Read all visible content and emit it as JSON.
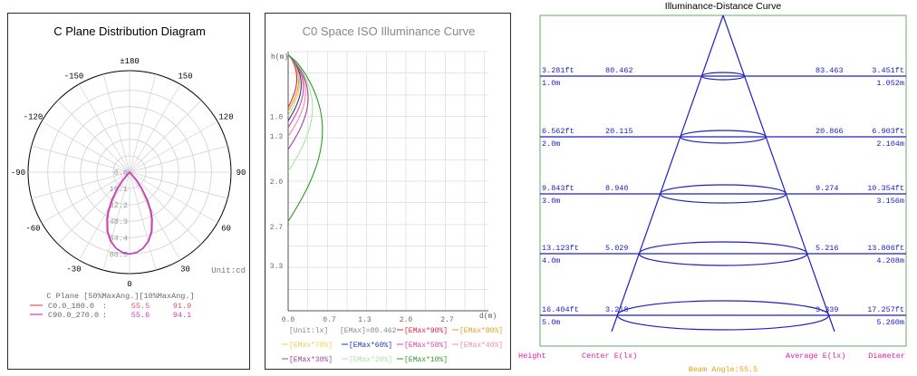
{
  "colors": {
    "blue": "#2020c0",
    "magenta": "#e020a0",
    "green_border": "#66aa66",
    "orange": "#e0a020"
  },
  "chart_data": [
    {
      "type": "polar",
      "title": "C Plane Distribution Diagram",
      "angle_labels": [
        "±180",
        "150",
        "120",
        "90",
        "60",
        "30",
        "0",
        "-30",
        "-60",
        "-90",
        "-120",
        "-150"
      ],
      "radial_ticks": [
        "0.0",
        "16.1",
        "32.2",
        "48.3",
        "64.4",
        "80.5"
      ],
      "r_max": 80.5,
      "unit": "Unit:cd",
      "table_header": "C Plane   [50%MaxAng.][10%MaxAng.]",
      "series": [
        {
          "name": "C0.0_180.0",
          "color": "#e0506a",
          "beam50": "55.5",
          "beam10": "91.9"
        },
        {
          "name": "C90.0_270.0",
          "color": "#c040d0",
          "beam50": "55.6",
          "beam10": "94.1"
        }
      ],
      "curve": {
        "angles_deg": [
          0,
          5,
          10,
          15,
          20,
          25,
          28,
          32,
          36,
          40,
          45
        ],
        "values": [
          80.5,
          79.4,
          76.0,
          70.5,
          62.5,
          51.5,
          44.0,
          32.0,
          20.0,
          10.0,
          0
        ]
      }
    },
    {
      "type": "line",
      "title": "C0 Space ISO Illuminance Curve",
      "ylabel": "h(m)",
      "xlabel": "d(m)",
      "x_ticks": [
        "0.0",
        "0.7",
        "1.3",
        "2.0",
        "2.7"
      ],
      "y_ticks": [
        "1.0",
        "1.3",
        "2.0",
        "2.7",
        "3.3"
      ],
      "xlim": [
        0,
        3.4
      ],
      "ylim": [
        0,
        4.0
      ],
      "legend": [
        {
          "label": "[Unit:lx]",
          "color": "#888888"
        },
        {
          "label": "[EMax]=80.462",
          "color": "#888888"
        },
        {
          "label": "[EMax*90%]",
          "color": "#e02040"
        },
        {
          "label": "[EMax*80%]",
          "color": "#e0a020"
        },
        {
          "label": "[EMax*70%]",
          "color": "#e6d24a"
        },
        {
          "label": "[EMax*60%]",
          "color": "#2030c0"
        },
        {
          "label": "[EMax*50%]",
          "color": "#e040a0"
        },
        {
          "label": "[EMax*40%]",
          "color": "#e890a8"
        },
        {
          "label": "[EMax*30%]",
          "color": "#a040a0"
        },
        {
          "label": "[EMax*20%]",
          "color": "#a8e8a0"
        },
        {
          "label": "[EMax*10%]",
          "color": "#2a9a2a"
        }
      ],
      "curves": [
        {
          "color": "#e02040",
          "tip_h": 0.86,
          "max_d": 0.2
        },
        {
          "color": "#e0a020",
          "tip_h": 0.92,
          "max_d": 0.24
        },
        {
          "color": "#e6d24a",
          "tip_h": 0.99,
          "max_d": 0.26
        },
        {
          "color": "#2030c0",
          "tip_h": 1.07,
          "max_d": 0.3
        },
        {
          "color": "#e040a0",
          "tip_h": 1.17,
          "max_d": 0.35
        },
        {
          "color": "#e890a8",
          "tip_h": 1.31,
          "max_d": 0.4
        },
        {
          "color": "#a040a0",
          "tip_h": 1.51,
          "max_d": 0.46
        },
        {
          "color": "#a8e8a0",
          "tip_h": 1.85,
          "max_d": 0.56
        },
        {
          "color": "#2a9a2a",
          "tip_h": 2.62,
          "max_d": 0.79
        }
      ]
    },
    {
      "type": "table",
      "title": "Illuminance-Distance Curve",
      "rows": [
        {
          "height_ft": "3.281ft",
          "height_m": "1.0m",
          "center": "80.462",
          "average": "83.463",
          "diameter_ft": "3.451ft",
          "diameter_m": "1.052m"
        },
        {
          "height_ft": "6.562ft",
          "height_m": "2.0m",
          "center": "20.115",
          "average": "20.866",
          "diameter_ft": "6.903ft",
          "diameter_m": "2.104m"
        },
        {
          "height_ft": "9.843ft",
          "height_m": "3.0m",
          "center": "8.940",
          "average": "9.274",
          "diameter_ft": "10.354ft",
          "diameter_m": "3.156m"
        },
        {
          "height_ft": "13.123ft",
          "height_m": "4.0m",
          "center": "5.029",
          "average": "5.216",
          "diameter_ft": "13.806ft",
          "diameter_m": "4.208m"
        },
        {
          "height_ft": "16.404ft",
          "height_m": "5.0m",
          "center": "3.218",
          "average": "3.339",
          "diameter_ft": "17.257ft",
          "diameter_m": "5.260m"
        }
      ],
      "footer": {
        "height": "Height",
        "center": "Center E(lx)",
        "average": "Average E(lx)",
        "diameter": "Diameter",
        "beam": "Beam Angle:55.5"
      }
    }
  ]
}
